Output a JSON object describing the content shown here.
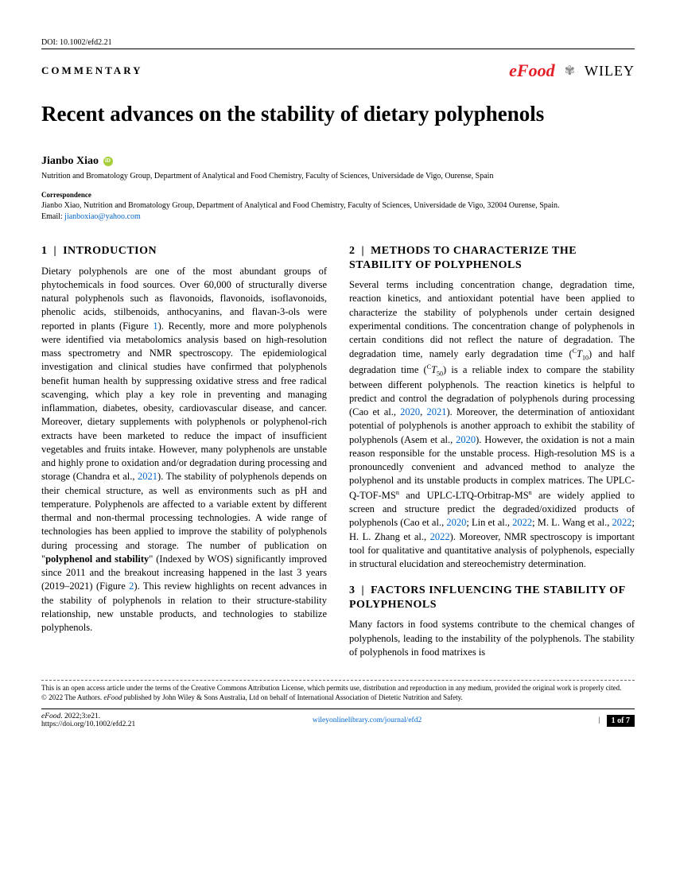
{
  "doi": "DOI: 10.1002/efd2.21",
  "article_type": "COMMENTARY",
  "logos": {
    "efood_e": "e",
    "efood_food": "Food",
    "wiley": "WILEY"
  },
  "title": "Recent advances on the stability of dietary polyphenols",
  "author": "Jianbo Xiao",
  "affiliation": "Nutrition and Bromatology Group, Department of Analytical and Food Chemistry, Faculty of Sciences, Universidade de Vigo, Ourense, Spain",
  "correspondence_label": "Correspondence",
  "correspondence_text": "Jianbo Xiao, Nutrition and Bromatology Group, Department of Analytical and Food Chemistry, Faculty of Sciences, Universidade de Vigo, 32004 Ourense, Spain.",
  "correspondence_email_label": "Email: ",
  "correspondence_email": "jianboxiao@yahoo.com",
  "sections": {
    "s1": {
      "num": "1",
      "title": "INTRODUCTION"
    },
    "s2": {
      "num": "2",
      "title": "METHODS TO CHARACTERIZE THE STABILITY OF POLYPHENOLS"
    },
    "s3": {
      "num": "3",
      "title": "FACTORS INFLUENCING THE STABILITY OF POLYPHENOLS"
    }
  },
  "body": {
    "p1a": "Dietary polyphenols are one of the most abundant groups of phytochemicals in food sources. Over 60,000 of structurally diverse natural polyphenols such as flavonoids, flavonoids, isoflavonoids, phenolic acids, stilbenoids, anthocyanins, and flavan-3-ols were reported in plants (Figure ",
    "fig1": "1",
    "p1b": "). Recently, more and more polyphenols were identified via metabolomics analysis based on high-resolution mass spectrometry and NMR spectroscopy. The epidemiological investigation and clinical studies have confirmed that polyphenols benefit human health by suppressing oxidative stress and free radical scavenging, which play a key role in preventing and managing inflammation, diabetes, obesity, cardiovascular disease, and cancer. Moreover, dietary supplements with polyphenols or polyphenol-rich extracts have been marketed to reduce the impact of insufficient vegetables and fruits intake. However, many polyphenols are unstable and highly prone to oxidation and/or degradation during processing and storage (Chandra et al., ",
    "y2021a": "2021",
    "p1c": "). The stability of polyphenols depends on their chemical structure, as well as environments such as pH and temperature. Polyphenols are affected to a variable extent by different thermal and non-thermal processing technologies. A wide range of technologies has been applied to improve the stability of polyphenols during processing and storage. The number of publication on \"",
    "bold1": "polyphenol and stability",
    "p1d": "\" (Indexed by WOS) significantly improved since 2011 and the breakout increasing happened in the last 3 years (2019–2021) (Figure ",
    "fig2": "2",
    "p1e": "). This review highlights on recent advances in the stability of polyphenols in relation to their structure-stability relationship, new unstable products, and technologies to stabilize polyphenols.",
    "p2a": "Several terms including concentration change, degradation time, reaction kinetics, and antioxidant potential have been applied to characterize the stability of polyphenols under certain designed experimental conditions. The concentration change of polyphenols in certain conditions did not reflect the nature of degradation. The degradation time, namely early degradation time (",
    "ct10": "T",
    "p2b": ") and half degradation time (",
    "ct50": "T",
    "p2c": ") is a reliable index to compare the stability between different polyphenols. The reaction kinetics is helpful to predict and control the degradation of polyphenols during processing (Cao et al., ",
    "y2020a": "2020",
    "p2d": ", ",
    "y2021b": "2021",
    "p2e": "). Moreover, the determination of antioxidant potential of polyphenols is another approach to exhibit the stability of polyphenols (Asem et al., ",
    "y2020b": "2020",
    "p2f": "). However, the oxidation is not a main reason responsible for the unstable process. High-resolution MS is a pronouncedly convenient and advanced method to analyze the polyphenol and its unstable products in complex matrices. The UPLC-Q-TOF-MS",
    "supn1": "n",
    "p2g": " and UPLC-LTQ-Orbitrap-MS",
    "supn2": "n",
    "p2h": " are widely applied to screen and structure predict the degraded/oxidized products of polyphenols (Cao et al., ",
    "y2020c": "2020",
    "p2i": "; Lin et al., ",
    "y2022a": "2022",
    "p2j": "; M. L. Wang et al., ",
    "y2022b": "2022",
    "p2k": "; H. L. Zhang et al., ",
    "y2022c": "2022",
    "p2l": "). Moreover, NMR spectroscopy is important tool for qualitative and quantitative analysis of polyphenols, especially in structural elucidation and stereochemistry determination.",
    "p3": "Many factors in food systems contribute to the chemical changes of polyphenols, leading to the instability of the polyphenols. The stability of polyphenols in food matrixes is"
  },
  "license": {
    "l1": "This is an open access article under the terms of the Creative Commons Attribution License, which permits use, distribution and reproduction in any medium, provided the original work is properly cited.",
    "l2a": "© 2022 The Authors. ",
    "l2i": "eFood",
    "l2b": " published by John Wiley & Sons Australia, Ltd on behalf of International Association of Dietetic Nutrition and Safety."
  },
  "footer": {
    "left_i": "eFood",
    "left": ". 2022;3:e21.",
    "left2": "https://doi.org/10.1002/efd2.21",
    "center": "wileyonlinelibrary.com/journal/efd2",
    "right_page": "1 of 7"
  },
  "colors": {
    "link": "#0066cc",
    "efood": "#e41e26",
    "orcid": "#a6ce39"
  }
}
